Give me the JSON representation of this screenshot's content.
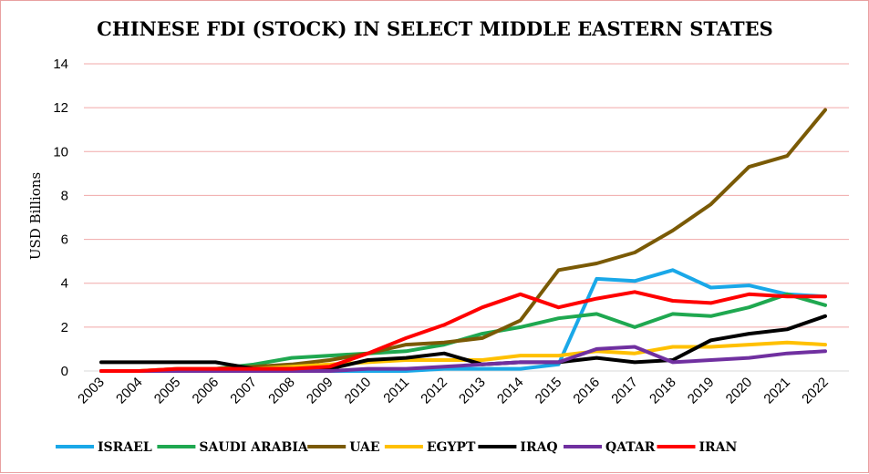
{
  "chart_data": {
    "type": "line",
    "title": "CHINESE FDI (STOCK) IN SELECT MIDDLE EASTERN STATES",
    "xlabel": "",
    "ylabel": "USD Billions",
    "ylim": [
      0,
      14
    ],
    "yticks": [
      0,
      2,
      4,
      6,
      8,
      10,
      12,
      14
    ],
    "grid": true,
    "legend_position": "bottom",
    "categories": [
      "2003",
      "2004",
      "2005",
      "2006",
      "2007",
      "2008",
      "2009",
      "2010",
      "2011",
      "2012",
      "2013",
      "2014",
      "2015",
      "2016",
      "2017",
      "2018",
      "2019",
      "2020",
      "2021",
      "2022"
    ],
    "series": [
      {
        "name": "ISRAEL",
        "color": "#1aa8e8",
        "values": [
          0,
          0,
          0,
          0,
          0,
          0,
          0,
          0,
          0,
          0.1,
          0.1,
          0.1,
          0.3,
          4.2,
          4.1,
          4.6,
          3.8,
          3.9,
          3.5,
          3.4
        ]
      },
      {
        "name": "SAUDI ARABIA",
        "color": "#1fa850",
        "values": [
          0,
          0,
          0.1,
          0.1,
          0.3,
          0.6,
          0.7,
          0.8,
          0.9,
          1.2,
          1.7,
          2.0,
          2.4,
          2.6,
          2.0,
          2.6,
          2.5,
          2.9,
          3.5,
          3.0
        ]
      },
      {
        "name": "UAE",
        "color": "#7a5a05",
        "values": [
          0,
          0,
          0,
          0.1,
          0.2,
          0.3,
          0.5,
          0.8,
          1.2,
          1.3,
          1.5,
          2.3,
          4.6,
          4.9,
          5.4,
          6.4,
          7.6,
          9.3,
          9.8,
          11.9
        ]
      },
      {
        "name": "EGYPT",
        "color": "#ffc000",
        "values": [
          0,
          0,
          0.1,
          0.1,
          0.1,
          0.2,
          0.3,
          0.4,
          0.5,
          0.5,
          0.5,
          0.7,
          0.7,
          0.9,
          0.8,
          1.1,
          1.1,
          1.2,
          1.3,
          1.2
        ]
      },
      {
        "name": "IRAQ",
        "color": "#000000",
        "values": [
          0.4,
          0.4,
          0.4,
          0.4,
          0.1,
          0.1,
          0.1,
          0.5,
          0.6,
          0.8,
          0.3,
          0.4,
          0.4,
          0.6,
          0.4,
          0.5,
          1.4,
          1.7,
          1.9,
          2.5
        ]
      },
      {
        "name": "QATAR",
        "color": "#7030a0",
        "values": [
          0,
          0,
          0,
          0,
          0,
          0,
          0,
          0.1,
          0.1,
          0.2,
          0.3,
          0.4,
          0.4,
          1.0,
          1.1,
          0.4,
          0.5,
          0.6,
          0.8,
          0.9
        ]
      },
      {
        "name": "IRAN",
        "color": "#ff0000",
        "values": [
          0,
          0,
          0.1,
          0.1,
          0.1,
          0.1,
          0.2,
          0.8,
          1.5,
          2.1,
          2.9,
          3.5,
          2.9,
          3.3,
          3.6,
          3.2,
          3.1,
          3.5,
          3.4,
          3.4
        ]
      }
    ]
  }
}
